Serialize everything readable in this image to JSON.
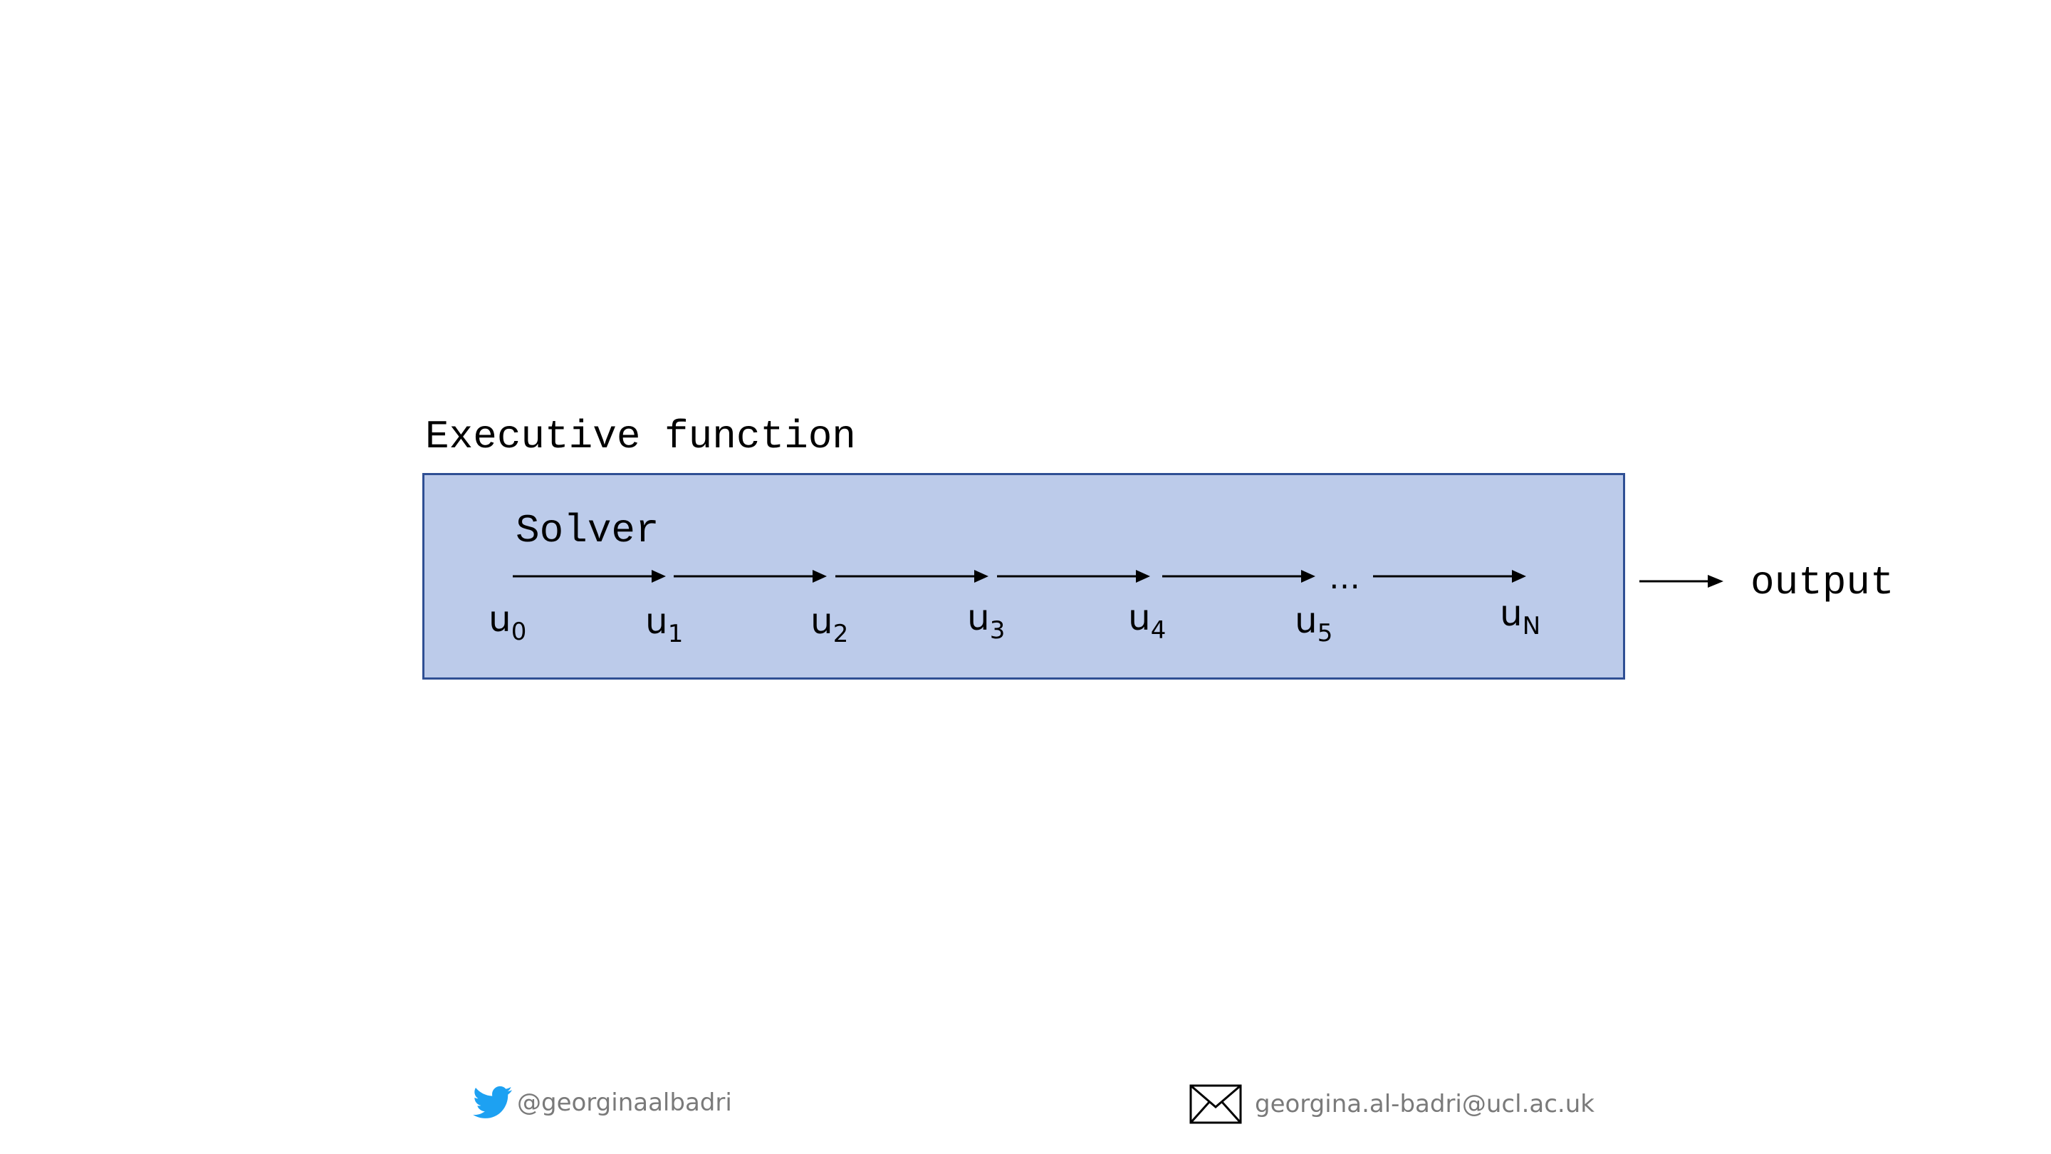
{
  "executive": {
    "title": "Executive function"
  },
  "solver": {
    "title": "Solver",
    "steps": [
      {
        "base": "u",
        "sub": "0"
      },
      {
        "base": "u",
        "sub": "1"
      },
      {
        "base": "u",
        "sub": "2"
      },
      {
        "base": "u",
        "sub": "3"
      },
      {
        "base": "u",
        "sub": "4"
      },
      {
        "base": "u",
        "sub": "5"
      },
      {
        "base": "u",
        "sub": "N"
      }
    ],
    "ellipsis": "…"
  },
  "output": {
    "label": "output"
  },
  "footer": {
    "twitter": {
      "icon": "twitter-bird-icon",
      "handle": "@georginaalbadri"
    },
    "email": {
      "icon": "envelope-icon",
      "address": "georgina.al-badri@ucl.ac.uk"
    }
  },
  "colors": {
    "box_fill": "#bccbea",
    "box_border": "#2f4f94",
    "twitter_blue": "#1da1f2",
    "footer_text": "#7a7a7a"
  }
}
